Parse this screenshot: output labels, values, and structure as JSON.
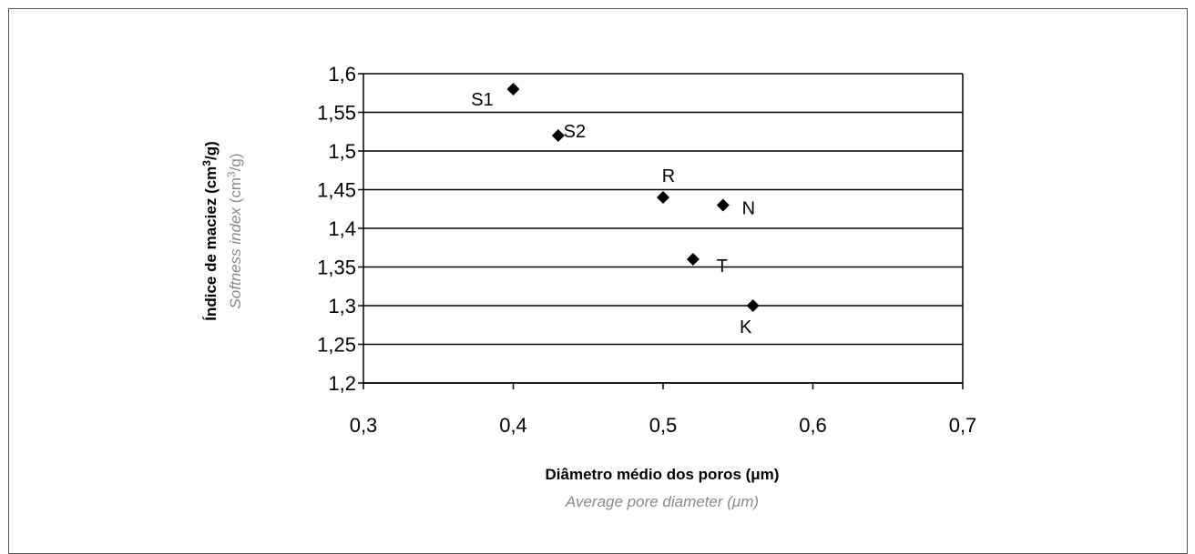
{
  "chart_data": {
    "type": "scatter",
    "xlabel": "Diâmetro médio dos poros (μm)",
    "xlabel_sub": "Average pore diameter (μm)",
    "ylabel_prefix": "Índice de maciez (cm",
    "ylabel_suffix": "/g)",
    "ylabel_sub_prefix": "Softness index",
    "ylabel_sub_rest": " (cm",
    "ylabel_sup": "3",
    "xlim": [
      0.3,
      0.7
    ],
    "ylim": [
      1.2,
      1.6
    ],
    "x_ticks": [
      "0,3",
      "0,4",
      "0,5",
      "0,6",
      "0,7"
    ],
    "y_ticks": [
      "1,2",
      "1,25",
      "1,3",
      "1,35",
      "1,4",
      "1,45",
      "1,5",
      "1,55",
      "1,6"
    ],
    "grid": "horizontal",
    "marker": "diamond",
    "colors": {
      "marker": "#000000",
      "grid": "#000000",
      "subtitle": "#8a8a8a"
    },
    "points": [
      {
        "label": "S1",
        "x": 0.4,
        "y": 1.58
      },
      {
        "label": "S2",
        "x": 0.43,
        "y": 1.52
      },
      {
        "label": "R",
        "x": 0.5,
        "y": 1.44
      },
      {
        "label": "N",
        "x": 0.54,
        "y": 1.43
      },
      {
        "label": "T",
        "x": 0.52,
        "y": 1.36
      },
      {
        "label": "K",
        "x": 0.56,
        "y": 1.3
      }
    ]
  }
}
